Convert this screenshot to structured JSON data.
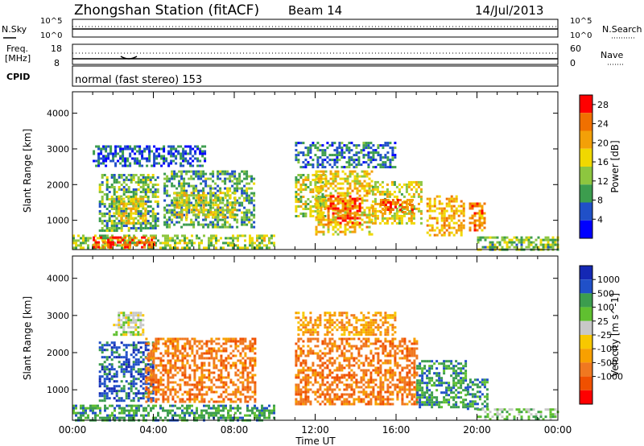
{
  "header": {
    "station": "Zhongshan Station (fitACF)",
    "beam": "Beam 14",
    "date": "14/Jul/2013"
  },
  "noise_panel": {
    "left_label": "N.Sky",
    "left_ticks": [
      "10^5",
      "10^0"
    ],
    "right_label": "N.Search",
    "right_ticks": [
      "10^5",
      "10^0"
    ]
  },
  "freq_panel": {
    "left_label_1": "Freq.",
    "left_label_2": "[MHz]",
    "left_ticks": [
      "18",
      "8"
    ],
    "right_label": "Nave",
    "right_ticks": [
      "60",
      "0"
    ]
  },
  "cpid_panel": {
    "label": "CPID",
    "mode_text": "normal (fast stereo) 153"
  },
  "x_axis": {
    "ticks": [
      "00:00",
      "04:00",
      "08:00",
      "12:00",
      "16:00",
      "20:00",
      "00:00"
    ],
    "label": "Time UT"
  },
  "colors": {
    "power": [
      "#0000ff",
      "#2050c8",
      "#3c9d4e",
      "#8dc63f",
      "#f0d800",
      "#f3a008",
      "#f07000",
      "#ff0000"
    ],
    "velocity": [
      "#ff0000",
      "#f05000",
      "#f07820",
      "#f8a000",
      "#f8c800",
      "#c8c8c8",
      "#60c030",
      "#3c9d4e",
      "#2050c8",
      "#1428b4"
    ]
  },
  "chart_data": [
    {
      "type": "heatmap",
      "name": "power-panel",
      "ylabel": "Slant Range [km]",
      "yticks": [
        "1000",
        "2000",
        "3000",
        "4000"
      ],
      "ylim": [
        180,
        4600
      ],
      "xlim_hours": [
        0,
        24
      ],
      "colorbar": {
        "label": "Power [dB]",
        "ticks": [
          "4",
          "8",
          "12",
          "16",
          "20",
          "24",
          "28"
        ],
        "range": [
          0,
          30
        ]
      },
      "blobs": [
        {
          "t0": 0.0,
          "t1": 10.0,
          "r0": 200,
          "r1": 600,
          "v": 14
        },
        {
          "t0": 1.0,
          "t1": 4.0,
          "r0": 250,
          "r1": 550,
          "v": 26
        },
        {
          "t0": 1.3,
          "t1": 4.2,
          "r0": 700,
          "r1": 2300,
          "v": 11
        },
        {
          "t0": 2.0,
          "t1": 3.6,
          "r0": 900,
          "r1": 1700,
          "v": 17
        },
        {
          "t0": 4.5,
          "t1": 9.0,
          "r0": 800,
          "r1": 2400,
          "v": 10
        },
        {
          "t0": 5.0,
          "t1": 8.0,
          "r0": 1100,
          "r1": 1800,
          "v": 16
        },
        {
          "t0": 1.0,
          "t1": 6.5,
          "r0": 2500,
          "r1": 3100,
          "v": 6
        },
        {
          "t0": 11.0,
          "t1": 12.5,
          "r0": 1100,
          "r1": 2300,
          "v": 15
        },
        {
          "t0": 12.0,
          "t1": 14.8,
          "r0": 600,
          "r1": 2400,
          "v": 18
        },
        {
          "t0": 12.6,
          "t1": 14.2,
          "r0": 900,
          "r1": 1700,
          "v": 26
        },
        {
          "t0": 14.8,
          "t1": 17.2,
          "r0": 900,
          "r1": 2100,
          "v": 16
        },
        {
          "t0": 15.2,
          "t1": 16.8,
          "r0": 1200,
          "r1": 1600,
          "v": 24
        },
        {
          "t0": 17.5,
          "t1": 19.3,
          "r0": 600,
          "r1": 1700,
          "v": 20
        },
        {
          "t0": 19.6,
          "t1": 20.4,
          "r0": 700,
          "r1": 1500,
          "v": 22
        },
        {
          "t0": 11.0,
          "t1": 16.0,
          "r0": 2500,
          "r1": 3200,
          "v": 7
        },
        {
          "t0": 20.0,
          "t1": 24.0,
          "r0": 200,
          "r1": 550,
          "v": 12
        }
      ]
    },
    {
      "type": "heatmap",
      "name": "velocity-panel",
      "ylabel": "Slant Range [km]",
      "yticks": [
        "1000",
        "2000",
        "3000",
        "4000"
      ],
      "ylim": [
        180,
        4600
      ],
      "xlim_hours": [
        0,
        24
      ],
      "colorbar": {
        "label": "Velocity [m s^-1]",
        "ticks": [
          "1000",
          "500",
          "100",
          "25",
          "-25",
          "-100",
          "-500",
          "-1000"
        ]
      },
      "blobs": [
        {
          "t0": 0.0,
          "t1": 10.0,
          "r0": 200,
          "r1": 600,
          "v": 7
        },
        {
          "t0": 1.3,
          "t1": 4.0,
          "r0": 700,
          "r1": 2300,
          "v": 8
        },
        {
          "t0": 3.6,
          "t1": 9.0,
          "r0": 700,
          "r1": 2400,
          "v": 2
        },
        {
          "t0": 2.0,
          "t1": 3.5,
          "r0": 2500,
          "r1": 3100,
          "v": 5
        },
        {
          "t0": 11.0,
          "t1": 17.0,
          "r0": 600,
          "r1": 2400,
          "v": 2
        },
        {
          "t0": 17.0,
          "t1": 19.5,
          "r0": 500,
          "r1": 1800,
          "v": 7
        },
        {
          "t0": 19.5,
          "t1": 20.5,
          "r0": 500,
          "r1": 1300,
          "v": 7
        },
        {
          "t0": 20.0,
          "t1": 24.0,
          "r0": 200,
          "r1": 500,
          "v": 6
        },
        {
          "t0": 11.0,
          "t1": 16.0,
          "r0": 2500,
          "r1": 3100,
          "v": 3
        }
      ]
    }
  ]
}
